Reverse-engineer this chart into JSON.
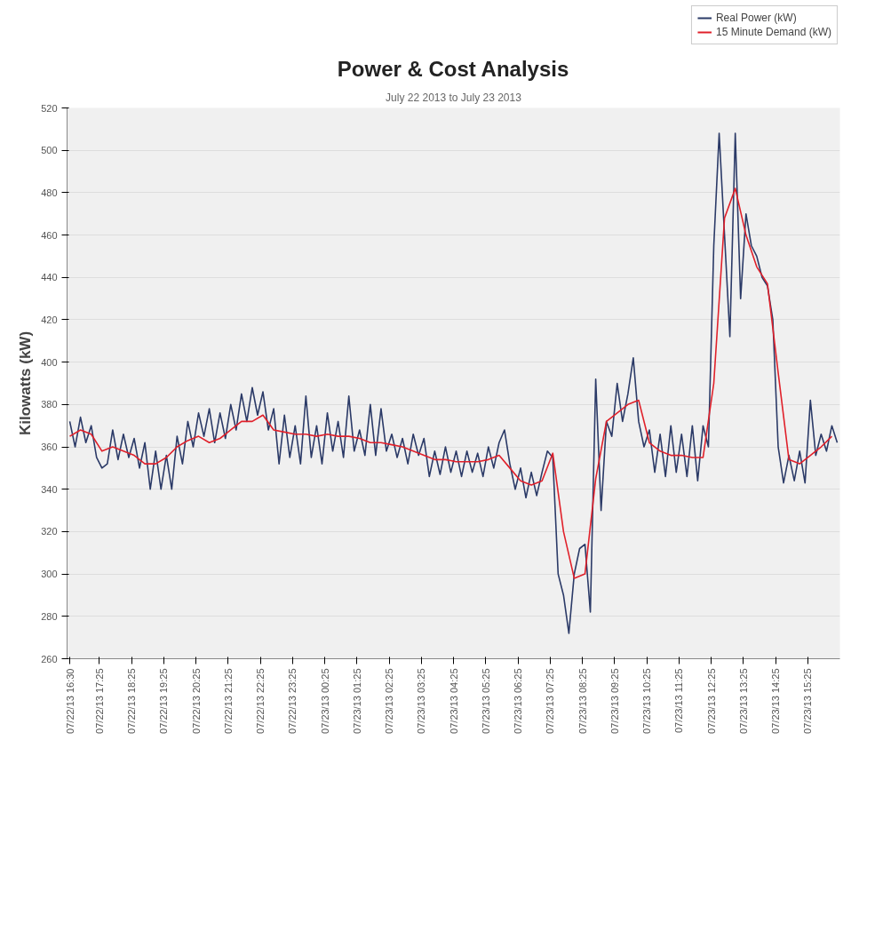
{
  "chart_data": {
    "type": "line",
    "title": "Power & Cost Analysis",
    "subtitle": "July 22 2013 to July 23 2013",
    "ylabel": "Kilowatts (kW)",
    "xlim": [
      "2013-07-22T16:25",
      "2013-07-23T16:25"
    ],
    "xticks": [
      {
        "value": "2013-07-22T16:30",
        "label": "07/22/13 16:30"
      },
      {
        "value": "2013-07-22T17:25",
        "label": "07/22/13 17:25"
      },
      {
        "value": "2013-07-22T18:25",
        "label": "07/22/13 18:25"
      },
      {
        "value": "2013-07-22T19:25",
        "label": "07/22/13 19:25"
      },
      {
        "value": "2013-07-22T20:25",
        "label": "07/22/13 20:25"
      },
      {
        "value": "2013-07-22T21:25",
        "label": "07/22/13 21:25"
      },
      {
        "value": "2013-07-22T22:25",
        "label": "07/22/13 22:25"
      },
      {
        "value": "2013-07-22T23:25",
        "label": "07/22/13 23:25"
      },
      {
        "value": "2013-07-23T00:25",
        "label": "07/23/13 00:25"
      },
      {
        "value": "2013-07-23T01:25",
        "label": "07/23/13 01:25"
      },
      {
        "value": "2013-07-23T02:25",
        "label": "07/23/13 02:25"
      },
      {
        "value": "2013-07-23T03:25",
        "label": "07/23/13 03:25"
      },
      {
        "value": "2013-07-23T04:25",
        "label": "07/23/13 04:25"
      },
      {
        "value": "2013-07-23T05:25",
        "label": "07/23/13 05:25"
      },
      {
        "value": "2013-07-23T06:25",
        "label": "07/23/13 06:25"
      },
      {
        "value": "2013-07-23T07:25",
        "label": "07/23/13 07:25"
      },
      {
        "value": "2013-07-23T08:25",
        "label": "07/23/13 08:25"
      },
      {
        "value": "2013-07-23T09:25",
        "label": "07/23/13 09:25"
      },
      {
        "value": "2013-07-23T10:25",
        "label": "07/23/13 10:25"
      },
      {
        "value": "2013-07-23T11:25",
        "label": "07/23/13 11:25"
      },
      {
        "value": "2013-07-23T12:25",
        "label": "07/23/13 12:25"
      },
      {
        "value": "2013-07-23T13:25",
        "label": "07/23/13 13:25"
      },
      {
        "value": "2013-07-23T14:25",
        "label": "07/23/13 14:25"
      },
      {
        "value": "2013-07-23T15:25",
        "label": "07/23/13 15:25"
      }
    ],
    "ylim": [
      260,
      520
    ],
    "yticks": [
      260,
      280,
      300,
      320,
      340,
      360,
      380,
      400,
      420,
      440,
      460,
      480,
      500,
      520
    ],
    "grid": "y",
    "legend": "top right",
    "series": [
      {
        "name": "Real Power (kW)",
        "color": "#2b3a67",
        "x": [
          "2013-07-22T16:30",
          "2013-07-22T16:40",
          "2013-07-22T16:50",
          "2013-07-22T17:00",
          "2013-07-22T17:10",
          "2013-07-22T17:20",
          "2013-07-22T17:30",
          "2013-07-22T17:40",
          "2013-07-22T17:50",
          "2013-07-22T18:00",
          "2013-07-22T18:10",
          "2013-07-22T18:20",
          "2013-07-22T18:30",
          "2013-07-22T18:40",
          "2013-07-22T18:50",
          "2013-07-22T19:00",
          "2013-07-22T19:10",
          "2013-07-22T19:20",
          "2013-07-22T19:30",
          "2013-07-22T19:40",
          "2013-07-22T19:50",
          "2013-07-22T20:00",
          "2013-07-22T20:10",
          "2013-07-22T20:20",
          "2013-07-22T20:30",
          "2013-07-22T20:40",
          "2013-07-22T20:50",
          "2013-07-22T21:00",
          "2013-07-22T21:10",
          "2013-07-22T21:20",
          "2013-07-22T21:30",
          "2013-07-22T21:40",
          "2013-07-22T21:50",
          "2013-07-22T22:00",
          "2013-07-22T22:10",
          "2013-07-22T22:20",
          "2013-07-22T22:30",
          "2013-07-22T22:40",
          "2013-07-22T22:50",
          "2013-07-22T23:00",
          "2013-07-22T23:10",
          "2013-07-22T23:20",
          "2013-07-22T23:30",
          "2013-07-22T23:40",
          "2013-07-22T23:50",
          "2013-07-23T00:00",
          "2013-07-23T00:10",
          "2013-07-23T00:20",
          "2013-07-23T00:30",
          "2013-07-23T00:40",
          "2013-07-23T00:50",
          "2013-07-23T01:00",
          "2013-07-23T01:10",
          "2013-07-23T01:20",
          "2013-07-23T01:30",
          "2013-07-23T01:40",
          "2013-07-23T01:50",
          "2013-07-23T02:00",
          "2013-07-23T02:10",
          "2013-07-23T02:20",
          "2013-07-23T02:30",
          "2013-07-23T02:40",
          "2013-07-23T02:50",
          "2013-07-23T03:00",
          "2013-07-23T03:10",
          "2013-07-23T03:20",
          "2013-07-23T03:30",
          "2013-07-23T03:40",
          "2013-07-23T03:50",
          "2013-07-23T04:00",
          "2013-07-23T04:10",
          "2013-07-23T04:20",
          "2013-07-23T04:30",
          "2013-07-23T04:40",
          "2013-07-23T04:50",
          "2013-07-23T05:00",
          "2013-07-23T05:10",
          "2013-07-23T05:20",
          "2013-07-23T05:30",
          "2013-07-23T05:40",
          "2013-07-23T05:50",
          "2013-07-23T06:00",
          "2013-07-23T06:10",
          "2013-07-23T06:20",
          "2013-07-23T06:30",
          "2013-07-23T06:40",
          "2013-07-23T06:50",
          "2013-07-23T07:00",
          "2013-07-23T07:10",
          "2013-07-23T07:20",
          "2013-07-23T07:30",
          "2013-07-23T07:40",
          "2013-07-23T07:50",
          "2013-07-23T08:00",
          "2013-07-23T08:10",
          "2013-07-23T08:20",
          "2013-07-23T08:30",
          "2013-07-23T08:40",
          "2013-07-23T08:50",
          "2013-07-23T09:00",
          "2013-07-23T09:10",
          "2013-07-23T09:20",
          "2013-07-23T09:30",
          "2013-07-23T09:40",
          "2013-07-23T09:50",
          "2013-07-23T10:00",
          "2013-07-23T10:10",
          "2013-07-23T10:20",
          "2013-07-23T10:30",
          "2013-07-23T10:40",
          "2013-07-23T10:50",
          "2013-07-23T11:00",
          "2013-07-23T11:10",
          "2013-07-23T11:20",
          "2013-07-23T11:30",
          "2013-07-23T11:40",
          "2013-07-23T11:50",
          "2013-07-23T12:00",
          "2013-07-23T12:10",
          "2013-07-23T12:20",
          "2013-07-23T12:30",
          "2013-07-23T12:40",
          "2013-07-23T12:50",
          "2013-07-23T13:00",
          "2013-07-23T13:10",
          "2013-07-23T13:20",
          "2013-07-23T13:30",
          "2013-07-23T13:40",
          "2013-07-23T13:50",
          "2013-07-23T14:00",
          "2013-07-23T14:10",
          "2013-07-23T14:20",
          "2013-07-23T14:30",
          "2013-07-23T14:40",
          "2013-07-23T14:50",
          "2013-07-23T15:00",
          "2013-07-23T15:10",
          "2013-07-23T15:20",
          "2013-07-23T15:30",
          "2013-07-23T15:40",
          "2013-07-23T15:50",
          "2013-07-23T16:00",
          "2013-07-23T16:10",
          "2013-07-23T16:20"
        ],
        "values": [
          372,
          360,
          374,
          362,
          370,
          355,
          350,
          352,
          368,
          354,
          366,
          355,
          364,
          350,
          362,
          340,
          358,
          340,
          356,
          340,
          365,
          352,
          372,
          360,
          376,
          365,
          378,
          362,
          376,
          364,
          380,
          368,
          385,
          372,
          388,
          375,
          386,
          368,
          378,
          352,
          375,
          355,
          370,
          352,
          384,
          355,
          370,
          352,
          376,
          358,
          372,
          355,
          384,
          358,
          368,
          356,
          380,
          356,
          378,
          358,
          366,
          355,
          364,
          352,
          366,
          356,
          364,
          346,
          358,
          347,
          360,
          348,
          358,
          346,
          358,
          348,
          357,
          346,
          360,
          350,
          362,
          368,
          352,
          340,
          350,
          336,
          348,
          337,
          348,
          358,
          355,
          300,
          290,
          272,
          300,
          312,
          314,
          282,
          392,
          330,
          372,
          365,
          390,
          372,
          385,
          402,
          372,
          360,
          368,
          348,
          366,
          346,
          370,
          348,
          366,
          346,
          370,
          344,
          370,
          360,
          455,
          508,
          460,
          412,
          508,
          430,
          470,
          455,
          450,
          440,
          436,
          420,
          360,
          343,
          356,
          344,
          358,
          343,
          382,
          356,
          366,
          358,
          370,
          362
        ]
      },
      {
        "name": "15 Minute Demand (kW)",
        "color": "#e0202a",
        "x": [
          "2013-07-22T16:30",
          "2013-07-22T16:50",
          "2013-07-22T17:10",
          "2013-07-22T17:30",
          "2013-07-22T17:50",
          "2013-07-22T18:10",
          "2013-07-22T18:30",
          "2013-07-22T18:50",
          "2013-07-22T19:10",
          "2013-07-22T19:30",
          "2013-07-22T19:50",
          "2013-07-22T20:10",
          "2013-07-22T20:30",
          "2013-07-22T20:50",
          "2013-07-22T21:10",
          "2013-07-22T21:30",
          "2013-07-22T21:50",
          "2013-07-22T22:10",
          "2013-07-22T22:30",
          "2013-07-22T22:50",
          "2013-07-22T23:10",
          "2013-07-22T23:30",
          "2013-07-22T23:50",
          "2013-07-23T00:10",
          "2013-07-23T00:30",
          "2013-07-23T00:50",
          "2013-07-23T01:10",
          "2013-07-23T01:30",
          "2013-07-23T01:50",
          "2013-07-23T02:10",
          "2013-07-23T02:30",
          "2013-07-23T02:50",
          "2013-07-23T03:10",
          "2013-07-23T03:30",
          "2013-07-23T03:50",
          "2013-07-23T04:10",
          "2013-07-23T04:30",
          "2013-07-23T04:50",
          "2013-07-23T05:10",
          "2013-07-23T05:30",
          "2013-07-23T05:50",
          "2013-07-23T06:10",
          "2013-07-23T06:30",
          "2013-07-23T06:50",
          "2013-07-23T07:10",
          "2013-07-23T07:30",
          "2013-07-23T07:50",
          "2013-07-23T08:10",
          "2013-07-23T08:30",
          "2013-07-23T08:50",
          "2013-07-23T09:10",
          "2013-07-23T09:30",
          "2013-07-23T09:50",
          "2013-07-23T10:10",
          "2013-07-23T10:30",
          "2013-07-23T10:50",
          "2013-07-23T11:10",
          "2013-07-23T11:30",
          "2013-07-23T11:50",
          "2013-07-23T12:10",
          "2013-07-23T12:30",
          "2013-07-23T12:50",
          "2013-07-23T13:10",
          "2013-07-23T13:30",
          "2013-07-23T13:50",
          "2013-07-23T14:10",
          "2013-07-23T14:30",
          "2013-07-23T14:50",
          "2013-07-23T15:10",
          "2013-07-23T15:30",
          "2013-07-23T15:50",
          "2013-07-23T16:10"
        ],
        "values": [
          365,
          368,
          366,
          358,
          360,
          358,
          356,
          352,
          352,
          355,
          360,
          363,
          365,
          362,
          364,
          368,
          372,
          372,
          375,
          368,
          367,
          366,
          366,
          365,
          366,
          365,
          365,
          364,
          362,
          362,
          361,
          360,
          358,
          356,
          354,
          354,
          353,
          353,
          353,
          354,
          356,
          350,
          344,
          342,
          344,
          357,
          320,
          298,
          300,
          345,
          372,
          376,
          380,
          382,
          362,
          358,
          356,
          356,
          355,
          355,
          390,
          468,
          482,
          460,
          445,
          437,
          395,
          354,
          352,
          356,
          360,
          365
        ]
      }
    ]
  }
}
